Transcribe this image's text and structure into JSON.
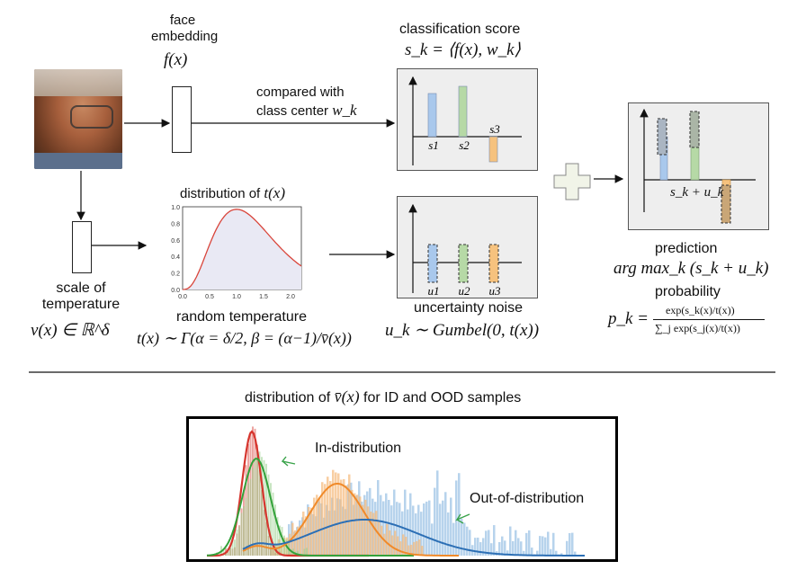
{
  "top": {
    "face_embedding_label": "face\nembedding",
    "face_embedding_math": "f(x)",
    "compared_with": "compared with",
    "class_center": "class center",
    "class_center_math": "w_k",
    "classification_score_label": "classification score",
    "classification_score_math": "s_k = ⟨f(x), w_k⟩",
    "scale_label": "scale of\ntemperature",
    "scale_math": "v(x) ∈ ℝ^δ",
    "distribution_label": "distribution of",
    "distribution_math": "t(x)",
    "random_temperature_label": "random temperature",
    "random_temperature_math": "t(x) ∼ Γ(α = δ/2, β = (α−1)/v̄(x))",
    "uncertainty_noise_label": "uncertainty noise",
    "uncertainty_noise_math": "u_k ∼ Gumbel(0, t(x))",
    "prediction_label": "prediction",
    "prediction_math": "arg max_k (s_k + u_k)",
    "probability_label": "probability",
    "probability_math_lhs": "p_k =",
    "probability_math_num": "exp(s_k(x)/t(x))",
    "probability_math_den": "∑_j exp(s_j(x)/t(x))",
    "score_bar_labels": [
      "s1",
      "s2",
      "s3"
    ],
    "noise_bar_labels": [
      "u1",
      "u2",
      "u3"
    ],
    "sum_label": "s_k + u_k",
    "gamma_ticks_x": [
      "0.0",
      "0.5",
      "1.0",
      "1.5",
      "2.0"
    ],
    "gamma_ticks_y": [
      "1.0",
      "0.8",
      "0.6",
      "0.4",
      "0.2",
      "0.0"
    ]
  },
  "bottom": {
    "title_prefix": "distribution of",
    "title_math": "v̄(x)",
    "title_suffix": "for ID and OOD samples",
    "in_dist_label": "In-distribution",
    "ood_label": "Out-of-distribution"
  },
  "colors": {
    "blue": "#a9c8ec",
    "green": "#b6d9a6",
    "orange": "#f6c27e",
    "red_curve": "#d9453b",
    "panel_bg": "#eeeeee"
  }
}
